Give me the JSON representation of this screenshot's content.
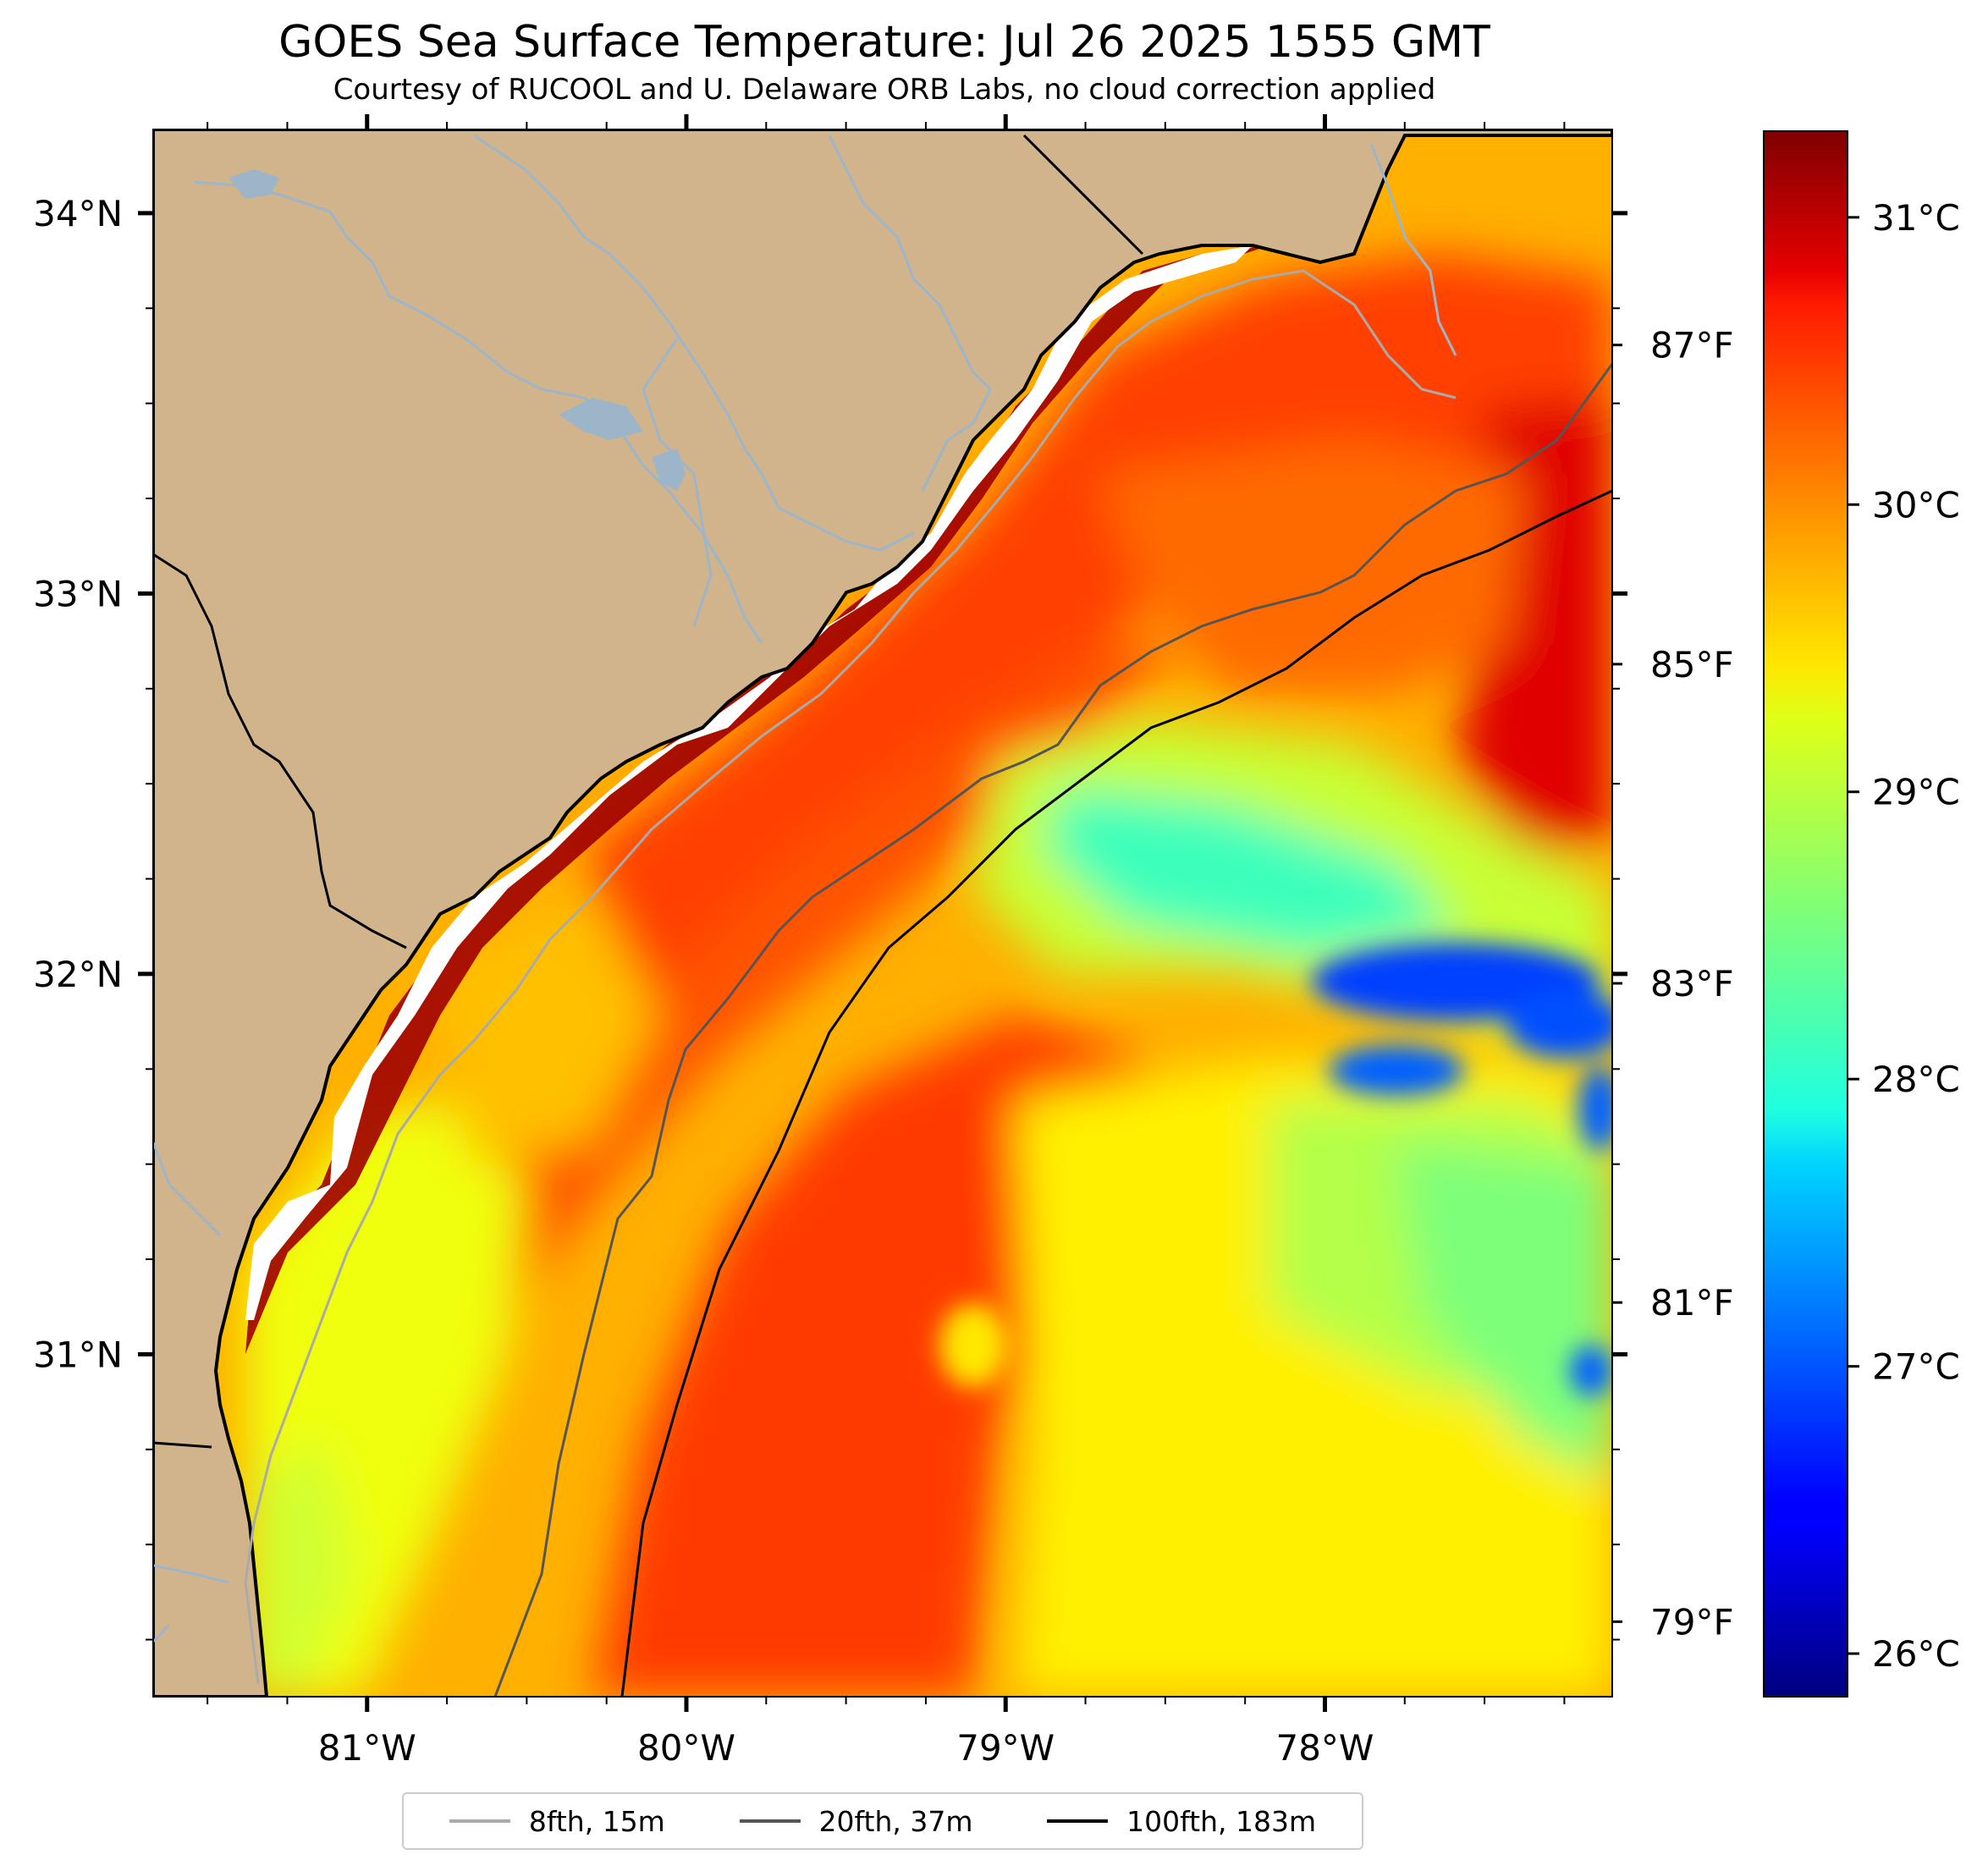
{
  "title": "GOES Sea Surface Temperature: Jul 26 2025 1555 GMT",
  "subtitle": "Courtesy of RUCOOL and U. Delaware ORB Labs, no cloud correction applied",
  "map": {
    "lon_range": [
      -81.67,
      -77.1
    ],
    "lat_range": [
      30.1,
      34.22
    ],
    "lon_ticks": [
      "81°W",
      "80°W",
      "79°W",
      "78°W"
    ],
    "lat_ticks": [
      "34°N",
      "33°N",
      "32°N",
      "31°N"
    ],
    "land_color": "#d2b48c",
    "coast_color": "#000000",
    "river_color": "#9db5c9"
  },
  "colorbar": {
    "colormap": "jet",
    "range_c": [
      25.85,
      31.3
    ],
    "celsius_ticks": [
      "31°C",
      "30°C",
      "29°C",
      "28°C",
      "27°C",
      "26°C"
    ],
    "fahrenheit_ticks": [
      "87°F",
      "85°F",
      "83°F",
      "81°F",
      "79°F"
    ]
  },
  "legend": {
    "items": [
      {
        "label": "8fth, 15m",
        "color": "#aaaaaa"
      },
      {
        "label": "20fth, 37m",
        "color": "#555555"
      },
      {
        "label": "100fth, 183m",
        "color": "#000000"
      }
    ]
  }
}
